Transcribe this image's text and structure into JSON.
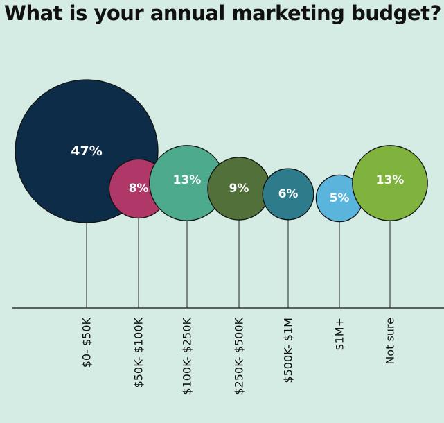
{
  "chart_data": {
    "type": "bubble",
    "title": "What is your annual marketing budget?",
    "categories": [
      "$0- $50K",
      "$50K- $100K",
      "$100K- $250K",
      "$250K- $500K",
      "$500K- $1M",
      "$1M+",
      "Not sure"
    ],
    "values": [
      47,
      8,
      13,
      9,
      6,
      5,
      13
    ],
    "value_labels": [
      "47%",
      "8%",
      "13%",
      "9%",
      "6%",
      "5%",
      "13%"
    ],
    "unit": "%",
    "colors": [
      "#0d2c47",
      "#b03868",
      "#4daa8c",
      "#52703a",
      "#2e7b8c",
      "#5ab4dc",
      "#7fb33e"
    ],
    "grid": false,
    "legend": "none"
  }
}
